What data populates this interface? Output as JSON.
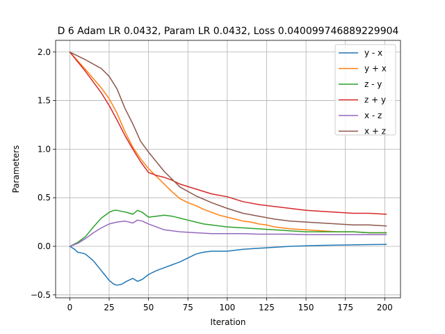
{
  "chart_data": {
    "type": "line",
    "title": "D 6 Adam LR 0.0432, Param LR 0.0432, Loss 0.040099746889229904",
    "xlabel": "Iteration",
    "ylabel": "Parameters",
    "xlim": [
      -9,
      210
    ],
    "ylim": [
      -0.53,
      2.12
    ],
    "xticks": [
      0,
      25,
      50,
      75,
      100,
      125,
      150,
      175,
      200
    ],
    "yticks": [
      -0.5,
      0.0,
      0.5,
      1.0,
      1.5,
      2.0
    ],
    "xtick_labels": [
      "0",
      "25",
      "50",
      "75",
      "100",
      "125",
      "150",
      "175",
      "200"
    ],
    "ytick_labels": [
      "−0.5",
      "0.0",
      "0.5",
      "1.0",
      "1.5",
      "2.0"
    ],
    "grid": true,
    "legend_position": "top-right",
    "series": [
      {
        "name": "y - x",
        "color": "#1f77b4",
        "x": [
          0,
          3,
          5,
          8,
          10,
          15,
          20,
          25,
          28,
          30,
          33,
          36,
          40,
          43,
          46,
          50,
          55,
          60,
          65,
          70,
          75,
          80,
          85,
          90,
          95,
          100,
          105,
          110,
          120,
          130,
          140,
          150,
          160,
          170,
          180,
          190,
          201
        ],
        "y": [
          0.0,
          -0.03,
          -0.06,
          -0.07,
          -0.08,
          -0.15,
          -0.25,
          -0.35,
          -0.39,
          -0.4,
          -0.39,
          -0.36,
          -0.33,
          -0.36,
          -0.34,
          -0.29,
          -0.25,
          -0.22,
          -0.19,
          -0.16,
          -0.12,
          -0.08,
          -0.06,
          -0.05,
          -0.05,
          -0.05,
          -0.04,
          -0.03,
          -0.02,
          -0.01,
          0.0,
          0.005,
          0.01,
          0.012,
          0.015,
          0.018,
          0.02
        ]
      },
      {
        "name": "y + x",
        "color": "#ff7f0e",
        "x": [
          0,
          10,
          20,
          25,
          30,
          35,
          40,
          45,
          50,
          55,
          60,
          65,
          70,
          75,
          80,
          85,
          90,
          95,
          100,
          105,
          110,
          115,
          120,
          125,
          130,
          135,
          140,
          150,
          160,
          170,
          180,
          190,
          201
        ],
        "y": [
          2.0,
          1.82,
          1.63,
          1.52,
          1.37,
          1.18,
          1.02,
          0.9,
          0.8,
          0.72,
          0.64,
          0.56,
          0.49,
          0.45,
          0.42,
          0.38,
          0.35,
          0.32,
          0.3,
          0.28,
          0.26,
          0.25,
          0.23,
          0.22,
          0.2,
          0.19,
          0.18,
          0.17,
          0.16,
          0.15,
          0.15,
          0.14,
          0.14
        ]
      },
      {
        "name": "z - y",
        "color": "#2ca02c",
        "x": [
          0,
          5,
          10,
          15,
          20,
          25,
          28,
          30,
          33,
          36,
          40,
          43,
          46,
          50,
          55,
          60,
          65,
          70,
          75,
          80,
          85,
          90,
          95,
          100,
          110,
          120,
          130,
          140,
          150,
          160,
          170,
          180,
          190,
          201
        ],
        "y": [
          0.0,
          0.04,
          0.1,
          0.2,
          0.29,
          0.35,
          0.37,
          0.37,
          0.36,
          0.35,
          0.33,
          0.37,
          0.35,
          0.3,
          0.31,
          0.32,
          0.31,
          0.29,
          0.27,
          0.25,
          0.23,
          0.22,
          0.21,
          0.2,
          0.19,
          0.18,
          0.17,
          0.16,
          0.15,
          0.15,
          0.15,
          0.15,
          0.14,
          0.14
        ]
      },
      {
        "name": "z + y",
        "color": "#d62728",
        "x": [
          0,
          10,
          20,
          25,
          30,
          35,
          40,
          45,
          50,
          55,
          60,
          65,
          70,
          80,
          90,
          100,
          110,
          120,
          130,
          140,
          150,
          160,
          170,
          180,
          190,
          201
        ],
        "y": [
          2.0,
          1.8,
          1.58,
          1.45,
          1.3,
          1.14,
          1.0,
          0.87,
          0.76,
          0.73,
          0.71,
          0.68,
          0.64,
          0.59,
          0.54,
          0.51,
          0.46,
          0.43,
          0.41,
          0.39,
          0.37,
          0.36,
          0.35,
          0.34,
          0.34,
          0.33
        ]
      },
      {
        "name": "x - z",
        "color": "#9467bd",
        "x": [
          0,
          5,
          10,
          15,
          20,
          25,
          30,
          35,
          40,
          43,
          46,
          50,
          55,
          60,
          70,
          80,
          90,
          100,
          110,
          120,
          130,
          140,
          150,
          160,
          170,
          180,
          190,
          201
        ],
        "y": [
          0.0,
          0.03,
          0.08,
          0.14,
          0.19,
          0.23,
          0.25,
          0.26,
          0.24,
          0.27,
          0.26,
          0.23,
          0.2,
          0.17,
          0.15,
          0.14,
          0.13,
          0.13,
          0.13,
          0.125,
          0.125,
          0.125,
          0.12,
          0.12,
          0.12,
          0.12,
          0.12,
          0.12
        ]
      },
      {
        "name": "x + z",
        "color": "#8c564b",
        "x": [
          0,
          10,
          20,
          25,
          30,
          35,
          40,
          45,
          50,
          55,
          60,
          65,
          70,
          80,
          90,
          100,
          110,
          120,
          130,
          140,
          150,
          160,
          170,
          180,
          190,
          201
        ],
        "y": [
          2.0,
          1.92,
          1.83,
          1.75,
          1.62,
          1.42,
          1.26,
          1.08,
          0.97,
          0.87,
          0.77,
          0.69,
          0.61,
          0.52,
          0.45,
          0.39,
          0.34,
          0.31,
          0.28,
          0.26,
          0.25,
          0.24,
          0.23,
          0.22,
          0.22,
          0.21
        ]
      }
    ]
  }
}
